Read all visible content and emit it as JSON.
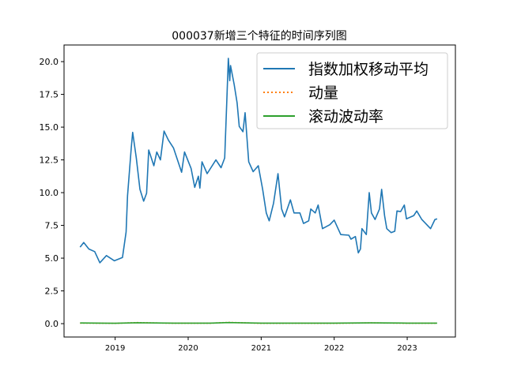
{
  "chart_data": {
    "type": "line",
    "title": "000037新增三个特征的时间序列图",
    "xlabel": "",
    "ylabel": "",
    "xlim": [
      2018.3,
      2023.66
    ],
    "ylim": [
      -1.02,
      21.27
    ],
    "xticks": [
      2019,
      2020,
      2021,
      2022,
      2023
    ],
    "xtick_labels": [
      "2019",
      "2020",
      "2021",
      "2022",
      "2023"
    ],
    "yticks": [
      0,
      2.5,
      5,
      7.5,
      10,
      12.5,
      15,
      17.5,
      20
    ],
    "ytick_labels": [
      "0.0",
      "2.5",
      "5.0",
      "7.5",
      "10.0",
      "12.5",
      "15.0",
      "17.5",
      "20.0"
    ],
    "grid": false,
    "legend_position": "top-right",
    "series": [
      {
        "name": "指数加权移动平均",
        "color": "#1f77b4",
        "style": "solid",
        "x": [
          2018.52,
          2018.57,
          2018.64,
          2018.72,
          2018.79,
          2018.88,
          2018.99,
          2019.1,
          2019.15,
          2019.17,
          2019.22,
          2019.24,
          2019.29,
          2019.34,
          2019.39,
          2019.43,
          2019.46,
          2019.53,
          2019.57,
          2019.62,
          2019.67,
          2019.73,
          2019.8,
          2019.91,
          2019.95,
          2020.04,
          2020.09,
          2020.14,
          2020.16,
          2020.19,
          2020.26,
          2020.38,
          2020.45,
          2020.5,
          2020.53,
          2020.55,
          2020.57,
          2020.58,
          2020.63,
          2020.67,
          2020.7,
          2020.75,
          2020.78,
          2020.83,
          2020.89,
          2020.96,
          2021.02,
          2021.07,
          2021.11,
          2021.17,
          2021.23,
          2021.28,
          2021.32,
          2021.4,
          2021.45,
          2021.53,
          2021.58,
          2021.65,
          2021.68,
          2021.74,
          2021.78,
          2021.84,
          2021.94,
          2022.0,
          2022.09,
          2022.2,
          2022.23,
          2022.29,
          2022.33,
          2022.36,
          2022.38,
          2022.44,
          2022.48,
          2022.51,
          2022.56,
          2022.62,
          2022.65,
          2022.69,
          2022.72,
          2022.78,
          2022.83,
          2022.86,
          2022.91,
          2022.96,
          2022.99,
          2023.09,
          2023.13,
          2023.2,
          2023.32,
          2023.38,
          2023.41
        ],
        "y": [
          5.84,
          6.2,
          5.7,
          5.5,
          4.65,
          5.2,
          4.8,
          5.05,
          7.0,
          9.75,
          13.4,
          14.6,
          12.65,
          10.25,
          9.35,
          9.95,
          13.25,
          12.05,
          13.1,
          12.5,
          14.7,
          14.0,
          13.4,
          11.55,
          13.1,
          11.85,
          10.4,
          11.25,
          10.35,
          12.35,
          11.45,
          12.5,
          11.9,
          12.65,
          17.05,
          20.25,
          18.55,
          19.7,
          18.25,
          16.85,
          15.05,
          14.65,
          16.1,
          12.35,
          11.6,
          12.05,
          10.25,
          8.45,
          7.85,
          9.2,
          11.45,
          8.75,
          8.15,
          9.45,
          8.45,
          8.45,
          7.65,
          7.85,
          8.75,
          8.45,
          9.05,
          7.25,
          7.55,
          7.9,
          6.8,
          6.75,
          6.45,
          6.65,
          5.4,
          5.7,
          7.25,
          6.8,
          10.0,
          8.45,
          7.95,
          8.75,
          10.25,
          8.25,
          7.25,
          6.95,
          7.05,
          8.6,
          8.55,
          9.05,
          8.0,
          8.25,
          8.6,
          7.95,
          7.25,
          7.95,
          8.0
        ]
      },
      {
        "name": "动量",
        "color": "#ff7f0e",
        "style": "dotted",
        "x": [
          2018.52,
          2019.0,
          2019.3,
          2019.8,
          2020.3,
          2020.55,
          2021.0,
          2021.5,
          2022.0,
          2022.5,
          2023.0,
          2023.41
        ],
        "y": [
          0.04,
          0.02,
          0.08,
          0.03,
          0.03,
          0.1,
          0.02,
          0.03,
          0.02,
          0.06,
          0.03,
          0.03
        ]
      },
      {
        "name": "滚动波动率",
        "color": "#2ca02c",
        "style": "solid",
        "x": [
          2018.52,
          2019.0,
          2019.3,
          2019.8,
          2020.3,
          2020.55,
          2021.0,
          2021.5,
          2022.0,
          2022.5,
          2023.0,
          2023.41
        ],
        "y": [
          0.05,
          0.03,
          0.07,
          0.04,
          0.04,
          0.08,
          0.04,
          0.04,
          0.04,
          0.06,
          0.04,
          0.04
        ]
      }
    ]
  }
}
